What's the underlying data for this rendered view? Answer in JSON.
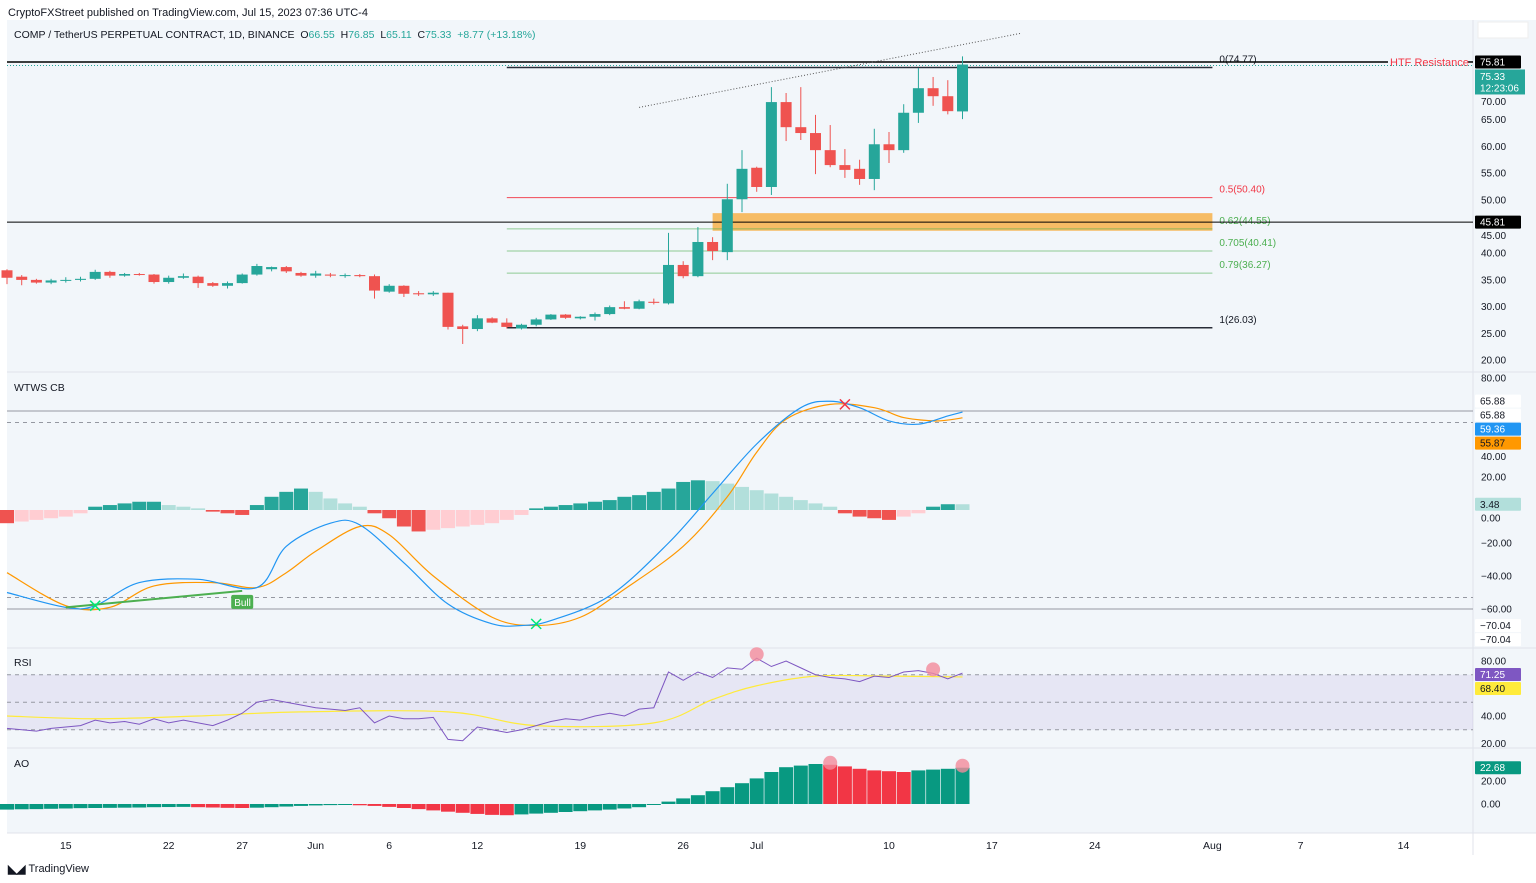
{
  "publisher_line": "CryptoFXStreet published on TradingView.com, Jul 15, 2023 07:36 UTC-4",
  "legend": {
    "symbol": "COMP / TetherUS PERPETUAL CONTRACT, 1D, BINANCE",
    "o_label": "O",
    "o": "66.55",
    "h_label": "H",
    "h": "76.85",
    "l_label": "L",
    "l": "65.11",
    "c_label": "C",
    "c": "75.33",
    "change": "+8.77 (+13.18%)"
  },
  "colors": {
    "up": "#26a69a",
    "down": "#ef5350",
    "background": "#f2f6fa",
    "wt1": "#2196f3",
    "wt2": "#ff9800",
    "rsi": "#7e57c2",
    "rsi_ma": "#ffeb3b",
    "fib_mid": "#f23645",
    "fib_green": "#4caf50",
    "zone": "#f7b24a"
  },
  "panes": {
    "wtws_title": "WTWS CB",
    "rsi_title": "RSI",
    "ao_title": "AO"
  },
  "footer": {
    "brand": "TradingView"
  },
  "chart_data": {
    "type": "candlestick",
    "dates": [
      "2023-05-11",
      "2023-05-12",
      "2023-05-13",
      "2023-05-14",
      "2023-05-15",
      "2023-05-16",
      "2023-05-17",
      "2023-05-18",
      "2023-05-19",
      "2023-05-20",
      "2023-05-21",
      "2023-05-22",
      "2023-05-23",
      "2023-05-24",
      "2023-05-25",
      "2023-05-26",
      "2023-05-27",
      "2023-05-28",
      "2023-05-29",
      "2023-05-30",
      "2023-05-31",
      "2023-06-01",
      "2023-06-02",
      "2023-06-03",
      "2023-06-04",
      "2023-06-05",
      "2023-06-06",
      "2023-06-07",
      "2023-06-08",
      "2023-06-09",
      "2023-06-10",
      "2023-06-11",
      "2023-06-12",
      "2023-06-13",
      "2023-06-14",
      "2023-06-15",
      "2023-06-16",
      "2023-06-17",
      "2023-06-18",
      "2023-06-19",
      "2023-06-20",
      "2023-06-21",
      "2023-06-22",
      "2023-06-23",
      "2023-06-24",
      "2023-06-25",
      "2023-06-26",
      "2023-06-27",
      "2023-06-28",
      "2023-06-29",
      "2023-06-30",
      "2023-07-01",
      "2023-07-02",
      "2023-07-03",
      "2023-07-04",
      "2023-07-05",
      "2023-07-06",
      "2023-07-07",
      "2023-07-08",
      "2023-07-09",
      "2023-07-10",
      "2023-07-11",
      "2023-07-12",
      "2023-07-13",
      "2023-07-14",
      "2023-07-15"
    ],
    "ohlc": [
      [
        36.8,
        37,
        34.2,
        35.4
      ],
      [
        35.6,
        35.9,
        34,
        35.0
      ],
      [
        35.0,
        35.2,
        34.3,
        34.5
      ],
      [
        34.5,
        35.2,
        34.2,
        34.9
      ],
      [
        34.9,
        35.5,
        34.5,
        35.0
      ],
      [
        35.0,
        35.6,
        34.7,
        35.2
      ],
      [
        35.2,
        36.9,
        35,
        36.5
      ],
      [
        36.5,
        36.7,
        35.4,
        35.8
      ],
      [
        35.8,
        36.3,
        35.6,
        36.1
      ],
      [
        36.1,
        36.3,
        35.8,
        36.0
      ],
      [
        36.0,
        36.1,
        34.3,
        34.6
      ],
      [
        34.6,
        35.8,
        34.3,
        35.4
      ],
      [
        35.4,
        36.2,
        35.2,
        35.7
      ],
      [
        35.6,
        35.8,
        33.5,
        34.4
      ],
      [
        34.4,
        34.6,
        33.7,
        33.9
      ],
      [
        33.9,
        34.7,
        33.4,
        34.4
      ],
      [
        34.4,
        36.2,
        34.3,
        36.0
      ],
      [
        36.0,
        38.0,
        35.8,
        37.6
      ],
      [
        37.0,
        37.5,
        36.6,
        37.4
      ],
      [
        37.4,
        37.6,
        36.3,
        36.6
      ],
      [
        36.3,
        36.5,
        35.6,
        35.8
      ],
      [
        35.8,
        36.7,
        35.4,
        36.2
      ],
      [
        36.0,
        36.3,
        35.5,
        35.8
      ],
      [
        35.8,
        36.2,
        35.4,
        35.9
      ],
      [
        35.9,
        36.1,
        35.5,
        35.7
      ],
      [
        35.7,
        36.0,
        31.5,
        33.0
      ],
      [
        32.8,
        34.2,
        32.6,
        33.9
      ],
      [
        33.9,
        34.0,
        31.8,
        32.4
      ],
      [
        32.5,
        32.9,
        32.0,
        32.3
      ],
      [
        32.3,
        32.9,
        32.0,
        32.6
      ],
      [
        32.6,
        32.6,
        25.7,
        26.2
      ],
      [
        26.3,
        26.6,
        23.0,
        25.8
      ],
      [
        25.8,
        28.4,
        25.4,
        27.8
      ],
      [
        27.8,
        28.0,
        26.9,
        27.0
      ],
      [
        27.0,
        27.8,
        25.9,
        26.2
      ],
      [
        25.9,
        26.8,
        25.7,
        26.6
      ],
      [
        26.6,
        27.9,
        26.3,
        27.6
      ],
      [
        27.6,
        28.6,
        27.5,
        28.5
      ],
      [
        28.5,
        28.6,
        27.7,
        27.9
      ],
      [
        27.8,
        28.2,
        27.6,
        28.1
      ],
      [
        28.1,
        28.9,
        27.4,
        28.6
      ],
      [
        28.6,
        30.2,
        28.4,
        29.9
      ],
      [
        29.9,
        31.0,
        29.5,
        29.6
      ],
      [
        29.6,
        31.3,
        29.5,
        31.0
      ],
      [
        30.9,
        31.5,
        30.4,
        30.7
      ],
      [
        30.6,
        43.8,
        30.4,
        37.8
      ],
      [
        37.8,
        38.5,
        35.3,
        35.7
      ],
      [
        35.7,
        44.9,
        35.5,
        42.1
      ],
      [
        42.1,
        43,
        38.7,
        40.4
      ],
      [
        40.2,
        53,
        38.7,
        50.1
      ],
      [
        50.1,
        59.3,
        47.7,
        55.8
      ],
      [
        56,
        56.2,
        51.5,
        52.4
      ],
      [
        52.4,
        71.1,
        50.9,
        68.3
      ],
      [
        68.3,
        70,
        61,
        63.6
      ],
      [
        63.6,
        71.1,
        61.2,
        62.5
      ],
      [
        62.5,
        65.9,
        54.8,
        59.3
      ],
      [
        59.3,
        64,
        56.1,
        56.5
      ],
      [
        56.5,
        59.5,
        54.1,
        55.6
      ],
      [
        55.8,
        57.5,
        52.8,
        53.9
      ],
      [
        53.9,
        63.3,
        51.8,
        60.4
      ],
      [
        60.4,
        62.7,
        56.9,
        59.3
      ],
      [
        59.3,
        67.9,
        58.8,
        66.3
      ],
      [
        66.3,
        74.7,
        64.4,
        70.9
      ],
      [
        70.9,
        73,
        67.6,
        69.4
      ],
      [
        69.4,
        72.4,
        66,
        66.6
      ],
      [
        66.55,
        76.85,
        65.11,
        75.33
      ]
    ],
    "x_ticks": [
      {
        "date": "2023-05-15",
        "label": "15"
      },
      {
        "date": "2023-05-22",
        "label": "22"
      },
      {
        "date": "2023-05-27",
        "label": "27"
      },
      {
        "date": "2023-06-01",
        "label": "Jun"
      },
      {
        "date": "2023-06-06",
        "label": "6"
      },
      {
        "date": "2023-06-12",
        "label": "12"
      },
      {
        "date": "2023-06-19",
        "label": "19"
      },
      {
        "date": "2023-06-26",
        "label": "26"
      },
      {
        "date": "2023-07-01",
        "label": "Jul"
      },
      {
        "date": "2023-07-10",
        "label": "10"
      },
      {
        "date": "2023-07-17",
        "label": "17"
      },
      {
        "date": "2023-07-24",
        "label": "24"
      },
      {
        "date": "2023-08-01",
        "label": "Aug"
      },
      {
        "date": "2023-08-07",
        "label": "7"
      },
      {
        "date": "2023-08-14",
        "label": "14"
      }
    ],
    "price_ticks": [
      "70.00",
      "65.00",
      "60.00",
      "55.00",
      "50.00",
      "45.00",
      "40.00",
      "35.00",
      "30.00",
      "25.00",
      "20.00"
    ],
    "price_badges": [
      {
        "value": 75.81,
        "label": "75.81",
        "bg": "#000000",
        "fg": "#ffffff"
      },
      {
        "value": 75.33,
        "label": "75.33",
        "sub": "12:23:06",
        "bg": "#26a69a",
        "fg": "#ffffff"
      },
      {
        "value": 45.81,
        "label": "45.81",
        "bg": "#000000",
        "fg": "#ffffff"
      }
    ],
    "htf_resistance": {
      "value": 75.81,
      "label": "HTF Resistance"
    },
    "support_line": 45.81,
    "fibonacci": {
      "from_date": "2023-06-14",
      "to_date": "2023-08-01",
      "levels": [
        {
          "ratio": "0",
          "price": 74.77,
          "label": "0(74.77)",
          "color": "#131722"
        },
        {
          "ratio": "0.5",
          "price": 50.4,
          "label": "0.5(50.40)",
          "color": "#f23645"
        },
        {
          "ratio": "0.62",
          "price": 44.55,
          "label": "0.62(44.55)",
          "color": "#4caf50"
        },
        {
          "ratio": "0.705",
          "price": 40.41,
          "label": "0.705(40.41)",
          "color": "#4caf50"
        },
        {
          "ratio": "0.79",
          "price": 36.27,
          "label": "0.79(36.27)",
          "color": "#4caf50"
        },
        {
          "ratio": "1",
          "price": 26.03,
          "label": "1(26.03)",
          "color": "#131722"
        }
      ]
    },
    "zone": {
      "from_date": "2023-06-28",
      "to_date": "2023-08-01",
      "top": 47.5,
      "bottom": 44.2
    },
    "trendline": [
      {
        "date": "2023-06-23",
        "price": 67.3
      },
      {
        "date": "2023-07-19",
        "price": 81.2
      }
    ],
    "wtws": {
      "ticks": [
        "80.00",
        "40.00",
        "20.00",
        "0.00",
        "−20.00",
        "−40.00",
        "−60.00"
      ],
      "tick_values": [
        80,
        40,
        20,
        0,
        -20,
        -40,
        -60
      ],
      "levels_solid": [
        60,
        -60
      ],
      "levels_dashed": [
        53,
        -53
      ],
      "histogram": [
        -8,
        -7,
        -6,
        -5,
        -4,
        -2,
        2,
        3,
        4,
        5,
        5,
        3,
        2,
        1,
        -1,
        -2,
        -3,
        3,
        8,
        11,
        13,
        11,
        7,
        4,
        2,
        -2,
        -5,
        -10,
        -13,
        -12,
        -11,
        -10,
        -9,
        -8,
        -6,
        -3,
        1,
        2,
        3,
        4,
        5,
        6,
        8,
        9,
        11,
        13,
        17,
        18,
        17.5,
        16,
        14,
        12,
        10,
        8,
        6,
        4,
        2,
        -2,
        -4,
        -5,
        -6,
        -4,
        -2,
        2,
        3.5,
        3.48
      ],
      "wt1": [
        [
          "2023-05-11",
          -50
        ],
        [
          "2023-05-15",
          -59
        ],
        [
          "2023-05-17",
          -58
        ],
        [
          "2023-05-20",
          -44
        ],
        [
          "2023-05-24",
          -42
        ],
        [
          "2023-05-28",
          -47
        ],
        [
          "2023-05-30",
          -22
        ],
        [
          "2023-06-02",
          -8
        ],
        [
          "2023-06-04",
          -9
        ],
        [
          "2023-06-07",
          -32
        ],
        [
          "2023-06-10",
          -57
        ],
        [
          "2023-06-13",
          -69
        ],
        [
          "2023-06-15",
          -70
        ],
        [
          "2023-06-17",
          -67
        ],
        [
          "2023-06-21",
          -52
        ],
        [
          "2023-06-25",
          -20
        ],
        [
          "2023-06-28",
          10
        ],
        [
          "2023-07-01",
          40
        ],
        [
          "2023-07-04",
          62
        ],
        [
          "2023-07-06",
          65.9
        ],
        [
          "2023-07-08",
          62
        ],
        [
          "2023-07-10",
          54
        ],
        [
          "2023-07-12",
          52
        ],
        [
          "2023-07-14",
          57
        ],
        [
          "2023-07-15",
          59.36
        ]
      ],
      "wt2": [
        [
          "2023-05-11",
          -38
        ],
        [
          "2023-05-15",
          -58
        ],
        [
          "2023-05-18",
          -59
        ],
        [
          "2023-05-21",
          -46
        ],
        [
          "2023-05-25",
          -44
        ],
        [
          "2023-05-28",
          -47
        ],
        [
          "2023-05-30",
          -38
        ],
        [
          "2023-06-01",
          -25
        ],
        [
          "2023-06-04",
          -10
        ],
        [
          "2023-06-06",
          -15
        ],
        [
          "2023-06-09",
          -40
        ],
        [
          "2023-06-13",
          -65
        ],
        [
          "2023-06-16",
          -70
        ],
        [
          "2023-06-19",
          -65
        ],
        [
          "2023-06-22",
          -48
        ],
        [
          "2023-06-26",
          -22
        ],
        [
          "2023-06-29",
          8
        ],
        [
          "2023-07-01",
          35
        ],
        [
          "2023-07-03",
          55
        ],
        [
          "2023-07-06",
          64
        ],
        [
          "2023-07-09",
          62
        ],
        [
          "2023-07-11",
          56
        ],
        [
          "2023-07-13",
          54
        ],
        [
          "2023-07-14",
          54.5
        ],
        [
          "2023-07-15",
          55.87
        ]
      ],
      "crosses": [
        {
          "date": "2023-05-17",
          "value": -58,
          "color": "#00e676"
        },
        {
          "date": "2023-06-16",
          "value": -69,
          "color": "#00e676"
        },
        {
          "date": "2023-07-07",
          "value": 64,
          "color": "#f23645"
        }
      ],
      "divergence": {
        "from": [
          "2023-05-15",
          -59
        ],
        "to": [
          "2023-05-27",
          -49
        ],
        "label": "Bull",
        "color": "#4caf50"
      },
      "badges": [
        {
          "value": 66,
          "label": "65.88",
          "bg": "#ffffff",
          "fg": "#131722",
          "offset": 0
        },
        {
          "value": 66,
          "label": "65.88",
          "bg": "#ffffff",
          "fg": "#131722",
          "offset": 1
        },
        {
          "value": 59.36,
          "label": "59.36",
          "bg": "#2196f3",
          "fg": "#ffffff"
        },
        {
          "value": 55.87,
          "label": "55.87",
          "bg": "#ff9800",
          "fg": "#131722"
        },
        {
          "value": 3.48,
          "label": "3.48",
          "bg": "#b2dfdb",
          "fg": "#131722"
        },
        {
          "value": -70.04,
          "label": "−70.04",
          "bg": "#ffffff",
          "fg": "#131722",
          "offset": 0
        },
        {
          "value": -70.04,
          "label": "−70.04",
          "bg": "#ffffff",
          "fg": "#131722",
          "offset": 1
        }
      ]
    },
    "rsi": {
      "ticks": [
        "80.00",
        "40.00",
        "20.00"
      ],
      "tick_values": [
        80,
        40,
        20
      ],
      "band": [
        70,
        30
      ],
      "mid": 50,
      "values": [
        31,
        30,
        29,
        31,
        32,
        33,
        37,
        35,
        36,
        34,
        38,
        35,
        37,
        35,
        33,
        37,
        42,
        50,
        52,
        50,
        48,
        46,
        45,
        44,
        46,
        35,
        40,
        38,
        38,
        39,
        23,
        22,
        32,
        30,
        28,
        30,
        33,
        36,
        38,
        37,
        40,
        42,
        40,
        45,
        46,
        72,
        66,
        72,
        68,
        75,
        74,
        82,
        76,
        80,
        75,
        70,
        68,
        67,
        65,
        69,
        68,
        72,
        73,
        71,
        67,
        71.25
      ],
      "ma": [
        [
          "2023-05-11",
          40
        ],
        [
          "2023-05-17",
          38
        ],
        [
          "2023-05-24",
          40
        ],
        [
          "2023-05-31",
          43
        ],
        [
          "2023-06-10",
          43
        ],
        [
          "2023-06-16",
          33
        ],
        [
          "2023-06-24",
          35
        ],
        [
          "2023-06-28",
          52
        ],
        [
          "2023-07-01",
          62
        ],
        [
          "2023-07-05",
          69
        ],
        [
          "2023-07-10",
          69
        ],
        [
          "2023-07-15",
          68.4
        ]
      ],
      "divergence_marks": [
        "2023-07-01",
        "2023-07-13"
      ],
      "badges": [
        {
          "value": 71.25,
          "label": "71.25",
          "bg": "#7e57c2",
          "fg": "#ffffff"
        },
        {
          "value": 68.4,
          "label": "68.40",
          "bg": "#ffeb3b",
          "fg": "#131722"
        }
      ]
    },
    "ao": {
      "ticks": [
        "20.00",
        "0.00"
      ],
      "tick_values": [
        20,
        0
      ],
      "values": [
        -3.5,
        -3.3,
        -3.2,
        -3.0,
        -2.8,
        -2.6,
        -2.5,
        -2.4,
        -2.3,
        -2.2,
        -2.0,
        -1.9,
        -1.8,
        -2.0,
        -2.2,
        -2.4,
        -2.5,
        -2.3,
        -2.0,
        -1.6,
        -1.2,
        -0.9,
        -0.7,
        -0.6,
        -0.8,
        -1.2,
        -1.8,
        -2.5,
        -3.2,
        -4.0,
        -4.8,
        -5.5,
        -6.2,
        -6.8,
        -7.0,
        -6.5,
        -6.0,
        -5.5,
        -5.0,
        -4.5,
        -4.0,
        -3.5,
        -2.8,
        -2.0,
        -0.5,
        1.5,
        3.5,
        5.5,
        8,
        10.5,
        13,
        16,
        20,
        23,
        24,
        25,
        24.5,
        23.5,
        22,
        21,
        20.5,
        20,
        21,
        21.5,
        22,
        22.68
      ],
      "divergence_marks": [
        "2023-07-06",
        "2023-07-15"
      ],
      "badges": [
        {
          "value": 22.68,
          "label": "22.68",
          "bg": "#089981",
          "fg": "#ffffff"
        }
      ]
    }
  }
}
